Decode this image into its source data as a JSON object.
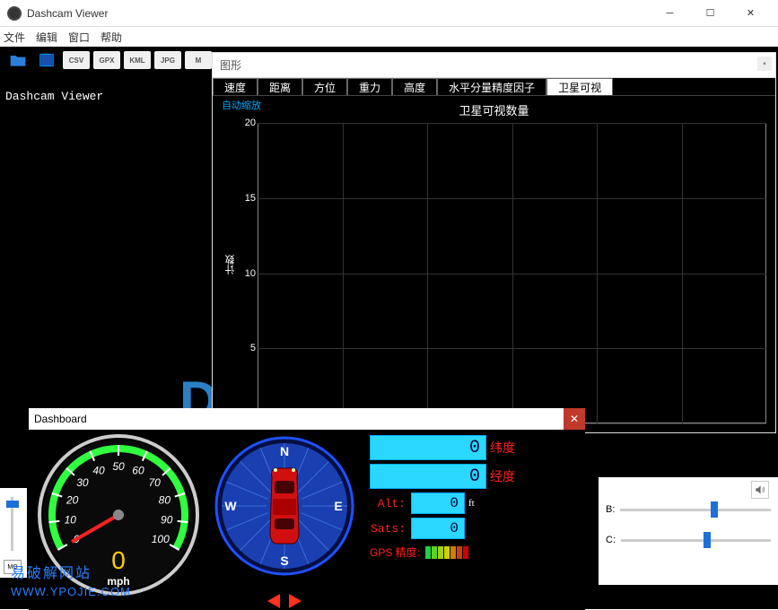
{
  "window": {
    "title": "Dashcam Viewer"
  },
  "menu": {
    "file": "文件",
    "edit": "编辑",
    "window": "窗口",
    "help": "帮助"
  },
  "toolbar_ext": [
    "CSV",
    "GPX",
    "KML",
    "JPG",
    "M"
  ],
  "main": {
    "watermark_title": "Dashcam Viewer"
  },
  "chart": {
    "panel_title": "图形",
    "tabs": [
      "速度",
      "距离",
      "方位",
      "重力",
      "高度",
      "水平分量精度因子",
      "卫星可视"
    ],
    "active_tab_index": 6,
    "autozoom": "自动缩放",
    "title": "卫星可视数量",
    "ylabel": "计数",
    "ymin": 0,
    "ymax": 20,
    "ystep": 5,
    "grid_color": "#333333",
    "axis_color": "#888888",
    "bg": "#000000",
    "text_color": "#ffffff"
  },
  "dashboard": {
    "title": "Dashboard",
    "speedo": {
      "value": 0,
      "unit": "mph",
      "min": 0,
      "max": 100,
      "ticks": [
        0,
        10,
        20,
        30,
        40,
        50,
        60,
        70,
        80,
        90,
        100
      ],
      "arc_start_deg": 210,
      "arc_end_deg": -30,
      "needle_color": "#ff2020",
      "arc_color": "#30ff40",
      "face_color": "#0a0a0a",
      "rim_color": "#cccccc",
      "digit_color": "#ffd000"
    },
    "compass": {
      "face_color": "#1a3fb0",
      "rim_color": "#2050ff",
      "labels": {
        "N": "N",
        "S": "S",
        "E": "E",
        "W": "W"
      },
      "car_color": "#d01010"
    },
    "readouts": {
      "lat_value": "0",
      "lat_label": "纬度",
      "lon_value": "0",
      "lon_label": "经度",
      "alt_label": "Alt:",
      "alt_value": "0",
      "alt_unit": "ft",
      "sats_label": "Sats:",
      "sats_value": "0",
      "gps_label": "GPS 精度:",
      "gps_bar_colors": [
        "#20d040",
        "#60d020",
        "#a0d010",
        "#d0d000",
        "#d08000",
        "#d04000",
        "#d00000"
      ]
    }
  },
  "side": {
    "b_label": "B:",
    "c_label": "C:",
    "b_pos": 0.6,
    "c_pos": 0.55
  },
  "watermark": {
    "line1": "易破解网站",
    "line2": "WWW.YPOJIE.COM"
  }
}
